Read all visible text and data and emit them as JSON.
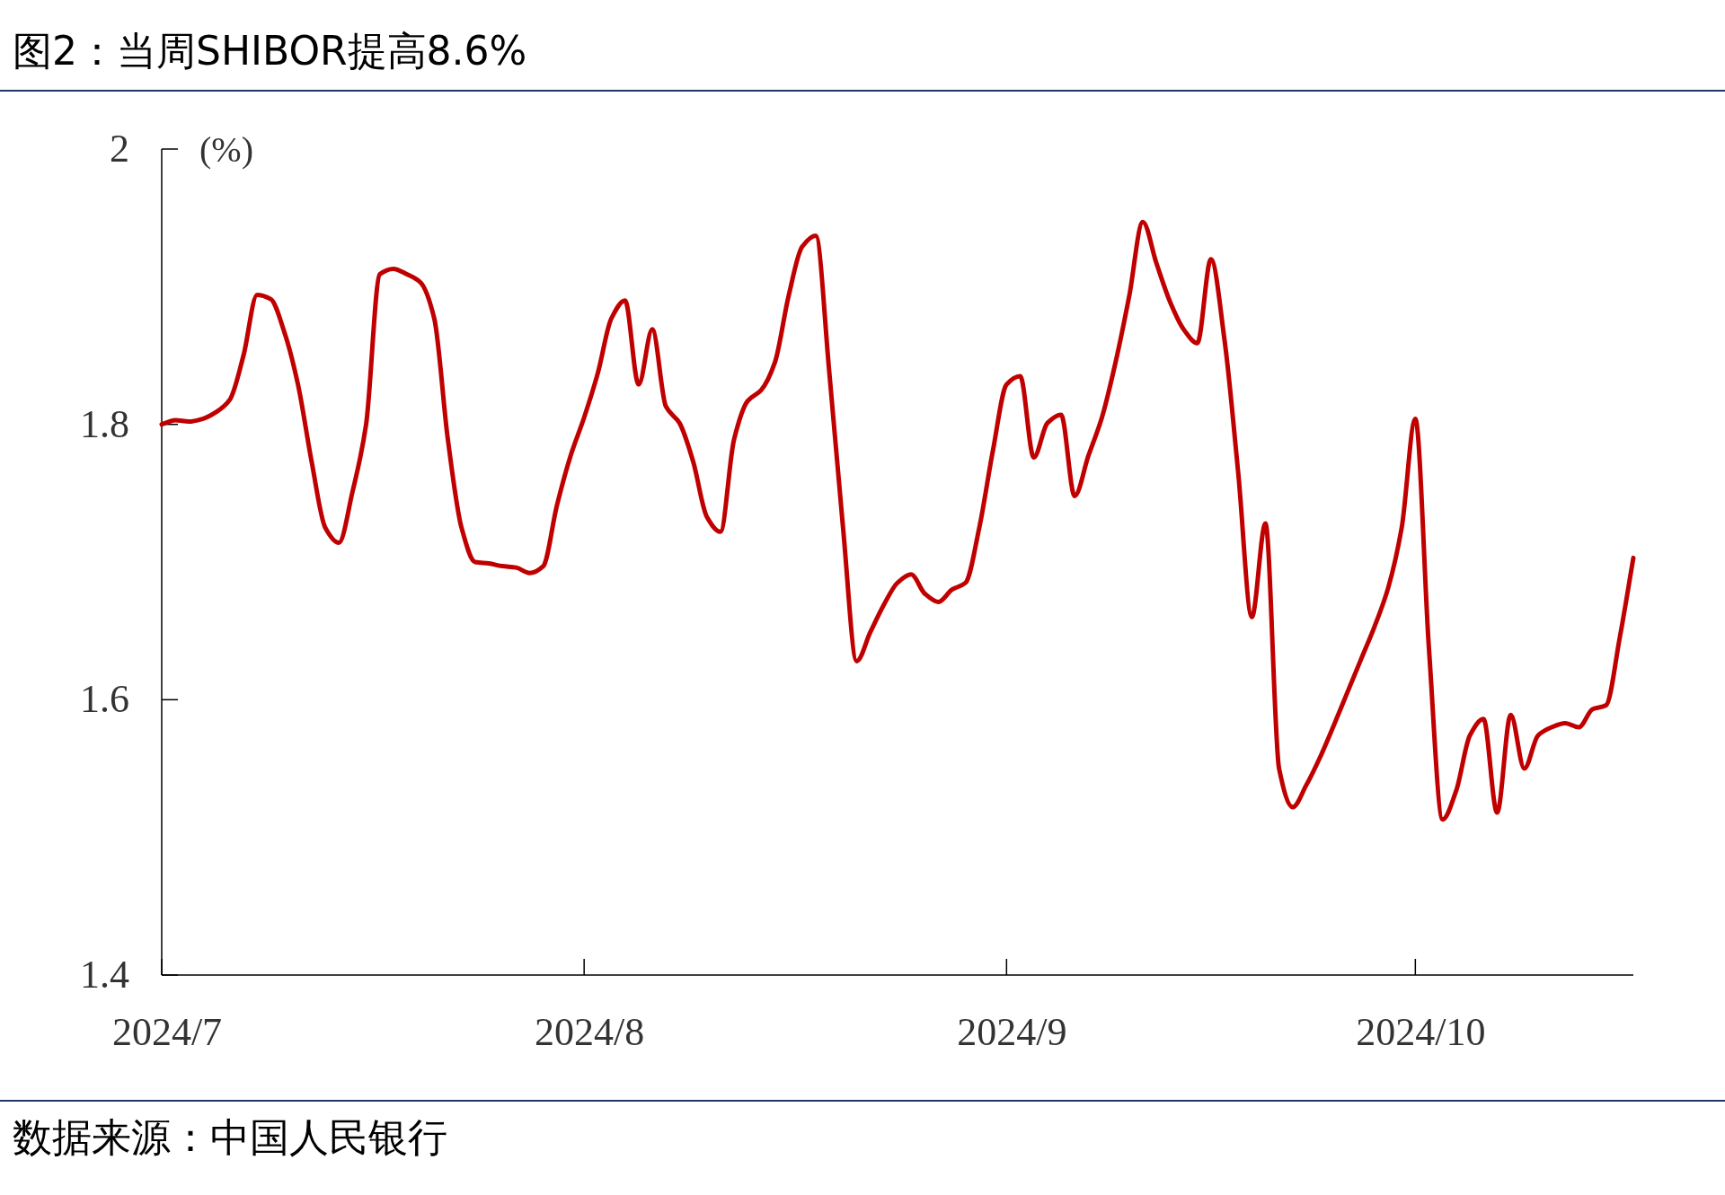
{
  "chart_data": {
    "type": "line",
    "title": "图2：当周SHIBOR提高8.6%",
    "ylabel": "(%)",
    "annotations": [
      "数据来源：中国人民银行"
    ],
    "x": [
      "2024-07-01",
      "2024-07-02",
      "2024-07-03",
      "2024-07-04",
      "2024-07-05",
      "2024-07-06",
      "2024-07-07",
      "2024-07-08",
      "2024-07-09",
      "2024-07-10",
      "2024-07-11",
      "2024-07-12",
      "2024-07-13",
      "2024-07-14",
      "2024-07-15",
      "2024-07-16",
      "2024-07-17",
      "2024-07-18",
      "2024-07-19",
      "2024-07-20",
      "2024-07-21",
      "2024-07-22",
      "2024-07-23",
      "2024-07-24",
      "2024-07-25",
      "2024-07-26",
      "2024-07-27",
      "2024-07-28",
      "2024-07-29",
      "2024-07-30",
      "2024-07-31",
      "2024-08-01",
      "2024-08-02",
      "2024-08-03",
      "2024-08-04",
      "2024-08-05",
      "2024-08-06",
      "2024-08-07",
      "2024-08-08",
      "2024-08-09",
      "2024-08-10",
      "2024-08-11",
      "2024-08-12",
      "2024-08-13",
      "2024-08-14",
      "2024-08-15",
      "2024-08-16",
      "2024-08-17",
      "2024-08-18",
      "2024-08-19",
      "2024-08-20",
      "2024-08-21",
      "2024-08-22",
      "2024-08-23",
      "2024-08-24",
      "2024-08-25",
      "2024-08-26",
      "2024-08-27",
      "2024-08-28",
      "2024-08-29",
      "2024-08-30",
      "2024-08-31",
      "2024-09-01",
      "2024-09-02",
      "2024-09-03",
      "2024-09-04",
      "2024-09-05",
      "2024-09-06",
      "2024-09-07",
      "2024-09-08",
      "2024-09-09",
      "2024-09-10",
      "2024-09-11",
      "2024-09-12",
      "2024-09-13",
      "2024-09-14",
      "2024-09-15",
      "2024-09-16",
      "2024-09-17",
      "2024-09-18",
      "2024-09-19",
      "2024-09-20",
      "2024-09-21",
      "2024-09-22",
      "2024-09-23",
      "2024-09-24",
      "2024-09-25",
      "2024-09-26",
      "2024-09-27",
      "2024-09-28",
      "2024-09-29",
      "2024-09-30",
      "2024-10-01",
      "2024-10-02",
      "2024-10-03",
      "2024-10-04",
      "2024-10-05",
      "2024-10-06",
      "2024-10-07",
      "2024-10-08",
      "2024-10-09",
      "2024-10-10",
      "2024-10-11",
      "2024-10-12",
      "2024-10-13",
      "2024-10-14",
      "2024-10-15",
      "2024-10-16",
      "2024-10-17"
    ],
    "series": [
      {
        "color": "#c00000",
        "values": [
          1.8,
          1.803,
          1.802,
          1.804,
          1.809,
          1.818,
          1.85,
          1.894,
          1.891,
          1.867,
          1.829,
          1.773,
          1.725,
          1.714,
          1.751,
          1.8,
          1.909,
          1.913,
          1.909,
          1.903,
          1.877,
          1.789,
          1.725,
          1.7,
          1.699,
          1.697,
          1.696,
          1.692,
          1.697,
          1.741,
          1.777,
          1.805,
          1.837,
          1.877,
          1.89,
          1.829,
          1.869,
          1.813,
          1.801,
          1.773,
          1.733,
          1.722,
          1.789,
          1.817,
          1.825,
          1.845,
          1.893,
          1.929,
          1.937,
          1.837,
          1.725,
          1.628,
          1.649,
          1.669,
          1.685,
          1.691,
          1.677,
          1.671,
          1.68,
          1.685,
          1.725,
          1.781,
          1.829,
          1.835,
          1.776,
          1.801,
          1.807,
          1.748,
          1.777,
          1.805,
          1.845,
          1.893,
          1.947,
          1.917,
          1.889,
          1.869,
          1.859,
          1.92,
          1.861,
          1.765,
          1.66,
          1.728,
          1.55,
          1.522,
          1.538,
          1.558,
          1.581,
          1.605,
          1.629,
          1.653,
          1.681,
          1.725,
          1.804,
          1.637,
          1.513,
          1.534,
          1.574,
          1.586,
          1.518,
          1.589,
          1.55,
          1.574,
          1.58,
          1.583,
          1.58,
          1.593,
          1.596,
          1.645,
          1.703
        ]
      }
    ],
    "xlim": [
      "2024-07-01",
      "2024-10-17"
    ],
    "xticks": [
      {
        "value": "2024-07-01",
        "label": "2024/7"
      },
      {
        "value": "2024-08-01",
        "label": "2024/8"
      },
      {
        "value": "2024-09-01",
        "label": "2024/9"
      },
      {
        "value": "2024-10-01",
        "label": "2024/10"
      }
    ],
    "ylim": [
      1.4,
      2
    ],
    "yticks": [
      1.4,
      1.6,
      1.8,
      2
    ]
  }
}
